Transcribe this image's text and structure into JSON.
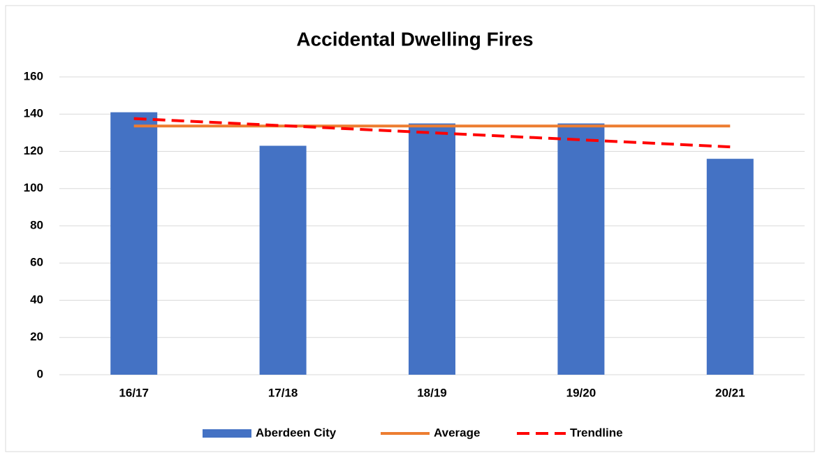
{
  "chart_data": {
    "type": "bar",
    "title": "Accidental Dwelling Fires",
    "categories": [
      "16/17",
      "17/18",
      "18/19",
      "19/20",
      "20/21"
    ],
    "series": [
      {
        "name": "Aberdeen City",
        "type": "bar",
        "color": "#4472c4",
        "values": [
          141,
          123,
          135,
          135,
          116
        ]
      },
      {
        "name": "Average",
        "type": "line",
        "color": "#ed7d31",
        "dashed": false,
        "values": [
          133.6,
          133.6,
          133.6,
          133.6,
          133.6
        ]
      },
      {
        "name": "Trendline",
        "type": "line",
        "color": "#ff0000",
        "dashed": true,
        "values": [
          137.6,
          133.8,
          130,
          126.2,
          122.4
        ]
      }
    ],
    "ylim": [
      0,
      160
    ],
    "yticks": [
      0,
      20,
      40,
      60,
      80,
      100,
      120,
      140,
      160
    ],
    "grid": true,
    "legend": "bottom"
  }
}
